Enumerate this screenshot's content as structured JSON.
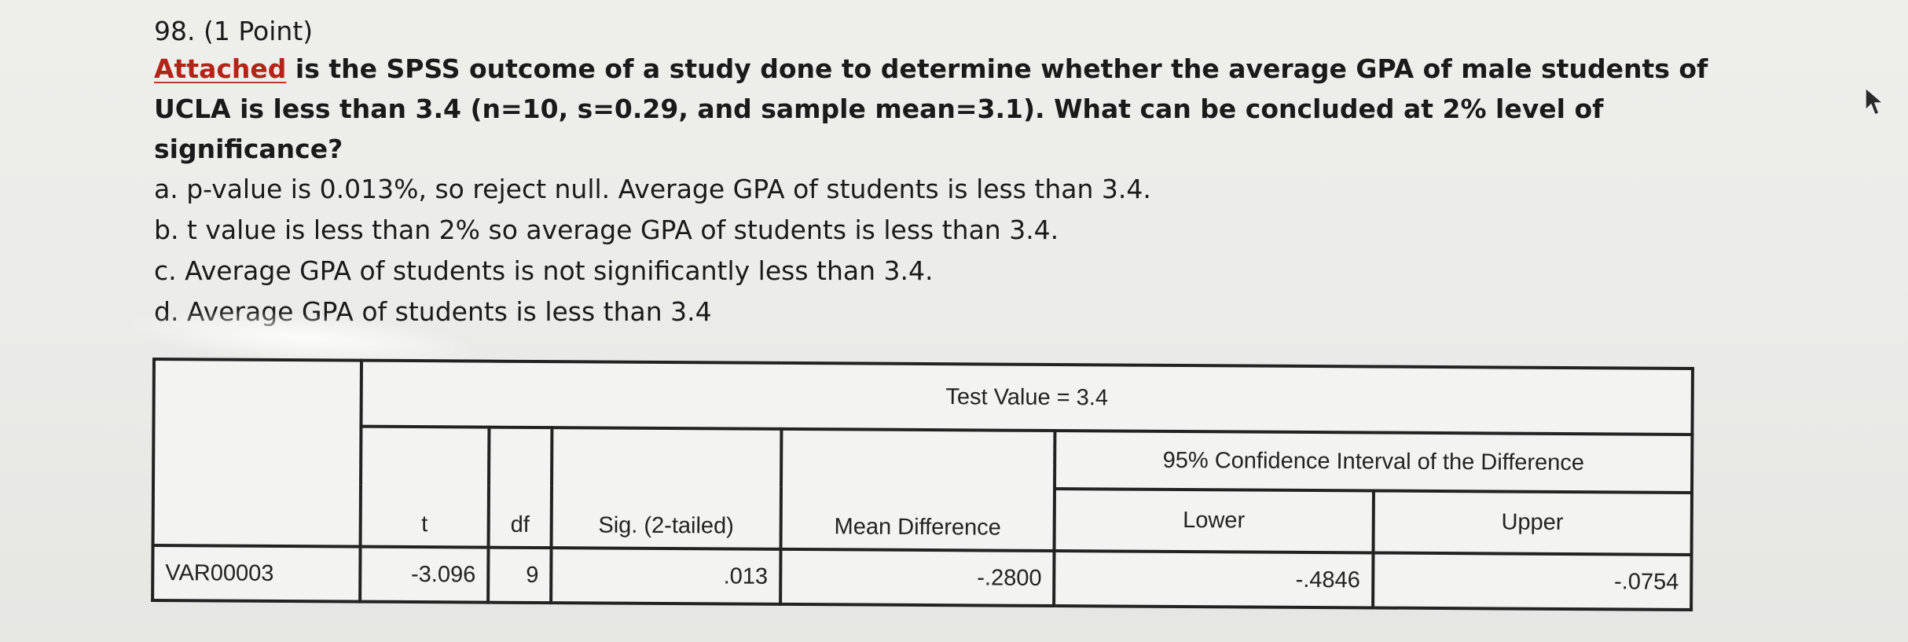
{
  "question": {
    "header": "98. (1 Point)",
    "stem_link": "Attached",
    "stem_text": " is the SPSS outcome of a study done to determine whether the average GPA of male students of UCLA is less than 3.4 (n=10, s=0.29, and sample mean=3.1).  What can be concluded at 2% level of significance?",
    "options": [
      "a. p-value is 0.013%, so reject null. Average GPA of students is less than 3.4.",
      "b. t value is less than 2% so average GPA of students is less than 3.4.",
      "c. Average GPA of students is not significantly less than 3.4.",
      "d. Average GPA of students is less than 3.4"
    ]
  },
  "spss_table": {
    "test_value_label": "Test Value = 3.4",
    "ci_label": "95% Confidence Interval of the Difference",
    "columns": {
      "t": "t",
      "df": "df",
      "sig": "Sig. (2-tailed)",
      "mean_diff": "Mean Difference",
      "lower": "Lower",
      "upper": "Upper"
    },
    "row": {
      "variable": "VAR00003",
      "t": "-3.096",
      "df": "9",
      "sig": ".013",
      "mean_diff": "-.2800",
      "lower": "-.4846",
      "upper": "-.0754"
    }
  },
  "icons": {
    "cursor": "mouse-pointer-icon"
  }
}
